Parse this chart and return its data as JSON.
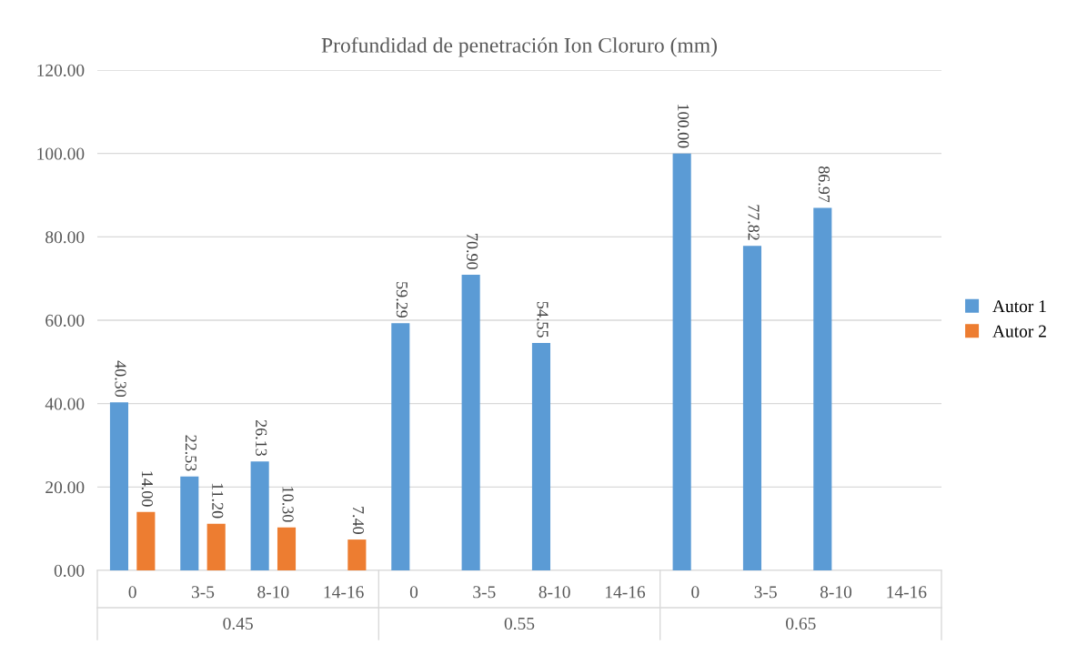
{
  "chart_data": {
    "type": "bar",
    "title": "Profundidad de penetración Ion Cloruro (mm)",
    "categories": [
      "0",
      "3-5",
      "8-10",
      "14-16",
      "0",
      "3-5",
      "8-10",
      "14-16",
      "0",
      "3-5",
      "8-10",
      "14-16"
    ],
    "series": [
      {
        "name": "Autor 1",
        "color": "#5b9bd5",
        "values": [
          40.3,
          22.53,
          26.13,
          null,
          59.29,
          70.9,
          54.55,
          null,
          100.0,
          77.82,
          86.97,
          null
        ],
        "value_labels": [
          "40.30",
          "22.53",
          "26.13",
          null,
          "59.29",
          "70.90",
          "54.55",
          null,
          "100.00",
          "77.82",
          "86.97",
          null
        ]
      },
      {
        "name": "Autor 2",
        "color": "#ed7d31",
        "values": [
          14.0,
          11.2,
          10.3,
          7.4,
          null,
          null,
          null,
          null,
          null,
          null,
          null,
          null
        ],
        "value_labels": [
          "14.00",
          "11.20",
          "10.30",
          "7.40",
          null,
          null,
          null,
          null,
          null,
          null,
          null,
          null
        ]
      }
    ],
    "annotations": [
      "0.45",
      "0.55",
      "0.65"
    ],
    "ylim": [
      0,
      120
    ],
    "yticks": [
      {
        "value": 0,
        "label": "0.00"
      },
      {
        "value": 20,
        "label": "20.00"
      },
      {
        "value": 40,
        "label": "40.00"
      },
      {
        "value": 60,
        "label": "60.00"
      },
      {
        "value": 80,
        "label": "80.00"
      },
      {
        "value": 100,
        "label": "100.00"
      },
      {
        "value": 120,
        "label": "120.00"
      }
    ],
    "grid": "y",
    "legend": "right"
  }
}
